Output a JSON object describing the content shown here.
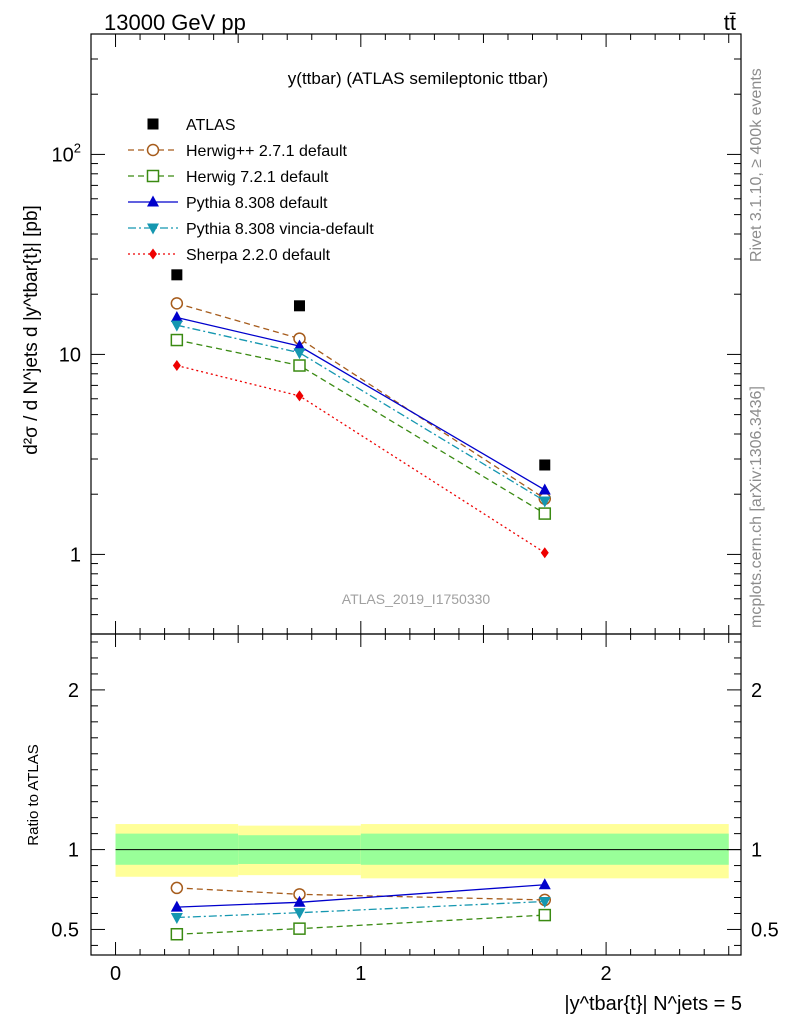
{
  "header": {
    "left": "13000 GeV pp",
    "right": "tt̄"
  },
  "side_text": {
    "top": "Rivet 3.1.10, ≥ 400k events",
    "bottom": "mcplots.cern.ch [arXiv:1306.3436]"
  },
  "watermark": "ATLAS_2019_I1750330",
  "chart_data": [
    {
      "type": "line",
      "title": "y(ttbar) (ATLAS semileptonic ttbar)",
      "ylabel": "d²σ / d N^jets d |y^tbar{t}| [pb]",
      "yscale": "log",
      "ylim": [
        0.4,
        400
      ],
      "xlim": [
        -0.1,
        2.55
      ],
      "yticks_labeled": [
        "1",
        "10",
        "10²"
      ],
      "legend_position": "top-left",
      "x": [
        0.25,
        0.75,
        1.75
      ],
      "data": {
        "name": "ATLAS",
        "values": [
          25,
          17.5,
          2.8
        ],
        "color": "#000000"
      },
      "series": [
        {
          "name": "Herwig++ 2.7.1 default",
          "values": [
            18,
            12,
            1.9
          ],
          "color": "#a65c1c",
          "marker": "circle-open",
          "dash": "dashed"
        },
        {
          "name": "Herwig 7.2.1 default",
          "values": [
            11.8,
            8.8,
            1.6
          ],
          "color": "#3a8a12",
          "marker": "square-open",
          "dash": "dashed"
        },
        {
          "name": "Pythia 8.308 default",
          "values": [
            15.3,
            11,
            2.1
          ],
          "color": "#0000cc",
          "marker": "triangle-up",
          "dash": "solid"
        },
        {
          "name": "Pythia 8.308 vincia-default",
          "values": [
            14,
            10.2,
            1.85
          ],
          "color": "#1597b0",
          "marker": "triangle-down",
          "dash": "dashdot"
        },
        {
          "name": "Sherpa 2.2.0 default",
          "values": [
            8.8,
            6.2,
            1.02
          ],
          "color": "#ee0000",
          "marker": "diamond",
          "dash": "dotted"
        }
      ]
    },
    {
      "type": "line",
      "ylabel": "Ratio to ATLAS",
      "xlabel": "|y^tbar{t}| N^jets = 5",
      "ylim": [
        0.34,
        2.35
      ],
      "xlim": [
        -0.1,
        2.55
      ],
      "xticks": [
        "0",
        "1",
        "2"
      ],
      "yticks": [
        "0.5",
        "1",
        "2"
      ],
      "bands": {
        "bin_edges": [
          0,
          0.5,
          1,
          2.5
        ],
        "inner": [
          [
            0.905,
            1.1
          ],
          [
            0.91,
            1.09
          ],
          [
            0.905,
            1.1
          ]
        ],
        "outer": [
          [
            0.83,
            1.16
          ],
          [
            0.84,
            1.15
          ],
          [
            0.82,
            1.16
          ]
        ],
        "inner_color": "#99ff99",
        "outer_color": "#ffff99"
      },
      "x": [
        0.25,
        0.75,
        1.75
      ],
      "series": [
        {
          "name": "Herwig++ 2.7.1 default",
          "values": [
            0.76,
            0.72,
            0.685
          ]
        },
        {
          "name": "Herwig 7.2.1 default",
          "values": [
            0.47,
            0.505,
            0.59
          ]
        },
        {
          "name": "Pythia 8.308 default",
          "values": [
            0.64,
            0.67,
            0.78
          ]
        },
        {
          "name": "Pythia 8.308 vincia-default",
          "values": [
            0.575,
            0.605,
            0.675
          ]
        }
      ]
    }
  ]
}
